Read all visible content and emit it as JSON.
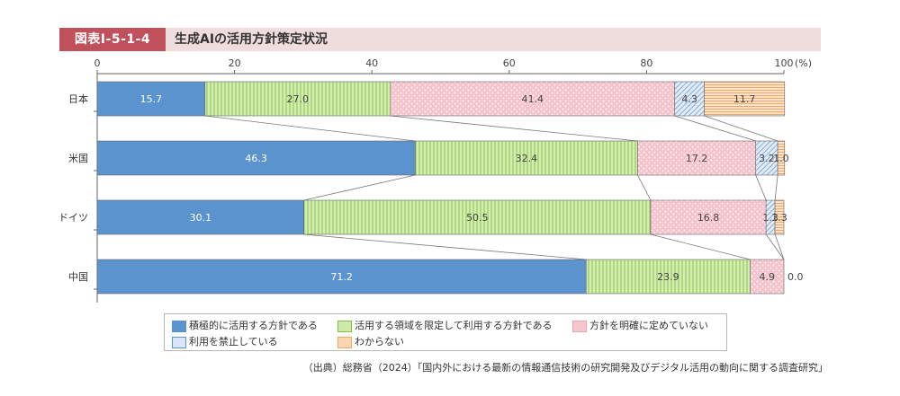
{
  "figure": {
    "number": "図表Ⅰ-5-1-4",
    "title": "生成AIの活用方針策定状況",
    "source": "（出典）総務省（2024）「国内外における最新の情報通信技術の研究開発及びデジタル活用の動向に関する調査研究」"
  },
  "chart_data": {
    "type": "bar",
    "orientation": "horizontal",
    "stacked": true,
    "unit_label": "(%)",
    "x_ticks": [
      "0",
      "20",
      "40",
      "60",
      "80",
      "100"
    ],
    "xlim": [
      0,
      100
    ],
    "grid": false,
    "legend_position": "bottom",
    "categories": [
      "日本",
      "米国",
      "ドイツ",
      "中国"
    ],
    "series": [
      {
        "name": "積極的に活用する方針である",
        "values": [
          15.7,
          46.3,
          30.1,
          71.2
        ],
        "color": "#5b93cf",
        "pattern": "solid"
      },
      {
        "name": "活用する領域を限定して利用する方針である",
        "values": [
          27.0,
          32.4,
          50.5,
          23.9
        ],
        "color": "#cfe9a8",
        "stroke": "#7fbf3f",
        "pattern": "vertical-lines"
      },
      {
        "name": "方針を明確に定めていない",
        "values": [
          41.4,
          17.2,
          16.8,
          4.9
        ],
        "color": "#f7c6cf",
        "pattern": "dots"
      },
      {
        "name": "利用を禁止している",
        "values": [
          4.3,
          3.2,
          1.3,
          0.0
        ],
        "color": "#dbe7f6",
        "stroke": "#5b93cf",
        "pattern": "diagonal-lines"
      },
      {
        "name": "わからない",
        "values": [
          11.7,
          1.0,
          1.3,
          0.0
        ],
        "color": "#fbd5b0",
        "stroke": "#f3a66a",
        "pattern": "horizontal-lines"
      }
    ],
    "value_labels": [
      [
        "15.7",
        "27.0",
        "41.4",
        "4.3",
        "11.7"
      ],
      [
        "46.3",
        "32.4",
        "17.2",
        "3.2",
        "1.0"
      ],
      [
        "30.1",
        "50.5",
        "16.8",
        "1.3",
        "1.3"
      ],
      [
        "71.2",
        "23.9",
        "4.9",
        "",
        "0.0"
      ]
    ]
  }
}
